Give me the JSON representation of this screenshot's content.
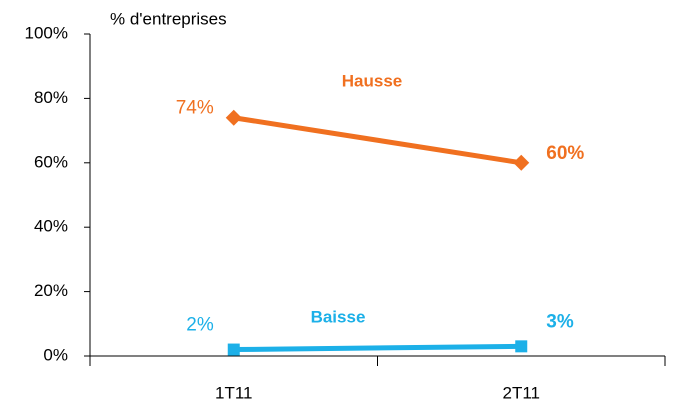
{
  "chart_data": {
    "type": "line",
    "y_label": "% d'entreprises",
    "categories": [
      "1T11",
      "2T11"
    ],
    "series": [
      {
        "name": "Hausse",
        "color": "#f07020",
        "marker": "diamond",
        "values": [
          74,
          60
        ],
        "value_labels": [
          "74%",
          "60%"
        ]
      },
      {
        "name": "Baisse",
        "color": "#1cb0e8",
        "marker": "square",
        "values": [
          2,
          3
        ],
        "value_labels": [
          "2%",
          "3%"
        ]
      }
    ],
    "ylim": [
      0,
      100
    ],
    "yticks": [
      {
        "value": 0,
        "label": "0%"
      },
      {
        "value": 20,
        "label": "20%"
      },
      {
        "value": 40,
        "label": "40%"
      },
      {
        "value": 60,
        "label": "60%"
      },
      {
        "value": 80,
        "label": "80%"
      },
      {
        "value": 100,
        "label": "100%"
      }
    ]
  }
}
